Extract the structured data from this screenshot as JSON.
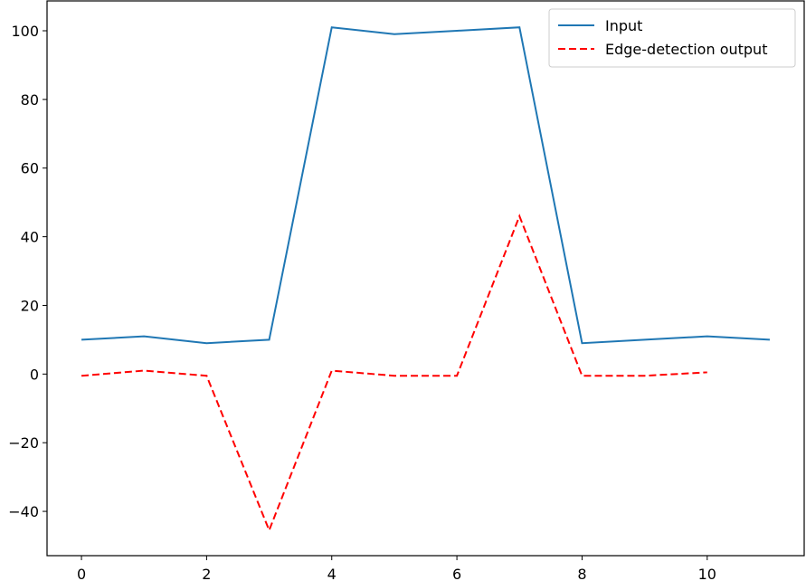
{
  "chart_data": {
    "type": "line",
    "series": [
      {
        "name": "Input",
        "color": "#1f77b4",
        "dash": "solid",
        "x": [
          0,
          1,
          2,
          3,
          4,
          5,
          6,
          7,
          8,
          9,
          10,
          11
        ],
        "values": [
          10,
          11,
          9,
          10,
          101,
          99,
          100,
          101,
          9,
          10,
          11,
          10
        ]
      },
      {
        "name": "Edge-detection output",
        "color": "#ff0000",
        "dash": "dashed",
        "x": [
          0,
          1,
          2,
          3,
          4,
          5,
          6,
          7,
          8,
          9,
          10
        ],
        "values": [
          -0.5,
          1,
          -0.5,
          -45.5,
          1,
          -0.5,
          -0.5,
          46,
          -0.5,
          -0.5,
          0.5
        ]
      }
    ],
    "xlim": [
      -0.55,
      11.55
    ],
    "xticks": [
      0,
      2,
      4,
      6,
      8,
      10
    ],
    "ylim": [
      -52.9,
      108.7
    ],
    "yticks": [
      {
        "value": -40,
        "label": "−40"
      },
      {
        "value": -20,
        "label": "−20"
      },
      0,
      20,
      40,
      60,
      80,
      100
    ],
    "legend": "upper right",
    "grid": false
  }
}
